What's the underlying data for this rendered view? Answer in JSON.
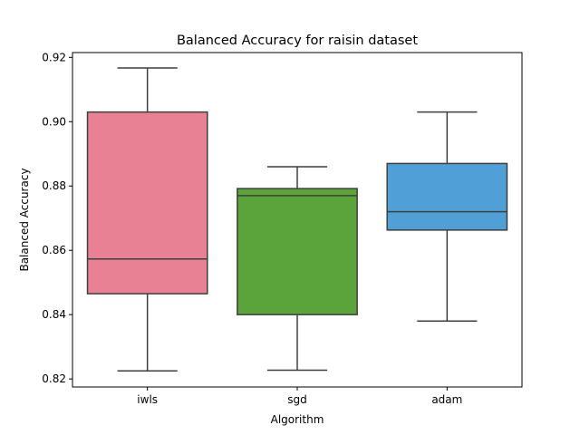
{
  "chart_data": {
    "type": "box",
    "title": "Balanced Accuracy for raisin dataset",
    "xlabel": "Algorithm",
    "ylabel": "Balanced Accuracy",
    "ylim": [
      0.8175,
      0.9215
    ],
    "yticks": [
      0.82,
      0.84,
      0.86,
      0.88,
      0.9,
      0.92
    ],
    "ytick_labels": [
      "0.82",
      "0.84",
      "0.86",
      "0.88",
      "0.90",
      "0.92"
    ],
    "grid": false,
    "categories": [
      "iwls",
      "sgd",
      "adam"
    ],
    "boxes": [
      {
        "category": "iwls",
        "whisker_low": 0.8225,
        "q1": 0.8465,
        "median": 0.8573,
        "q3": 0.903,
        "whisker_high": 0.9167,
        "color": "#e78193"
      },
      {
        "category": "sgd",
        "whisker_low": 0.8227,
        "q1": 0.84,
        "median": 0.877,
        "q3": 0.8792,
        "whisker_high": 0.886,
        "color": "#5ba33b"
      },
      {
        "category": "adam",
        "whisker_low": 0.838,
        "q1": 0.8663,
        "median": 0.872,
        "q3": 0.887,
        "whisker_high": 0.903,
        "color": "#509fd7"
      }
    ]
  }
}
